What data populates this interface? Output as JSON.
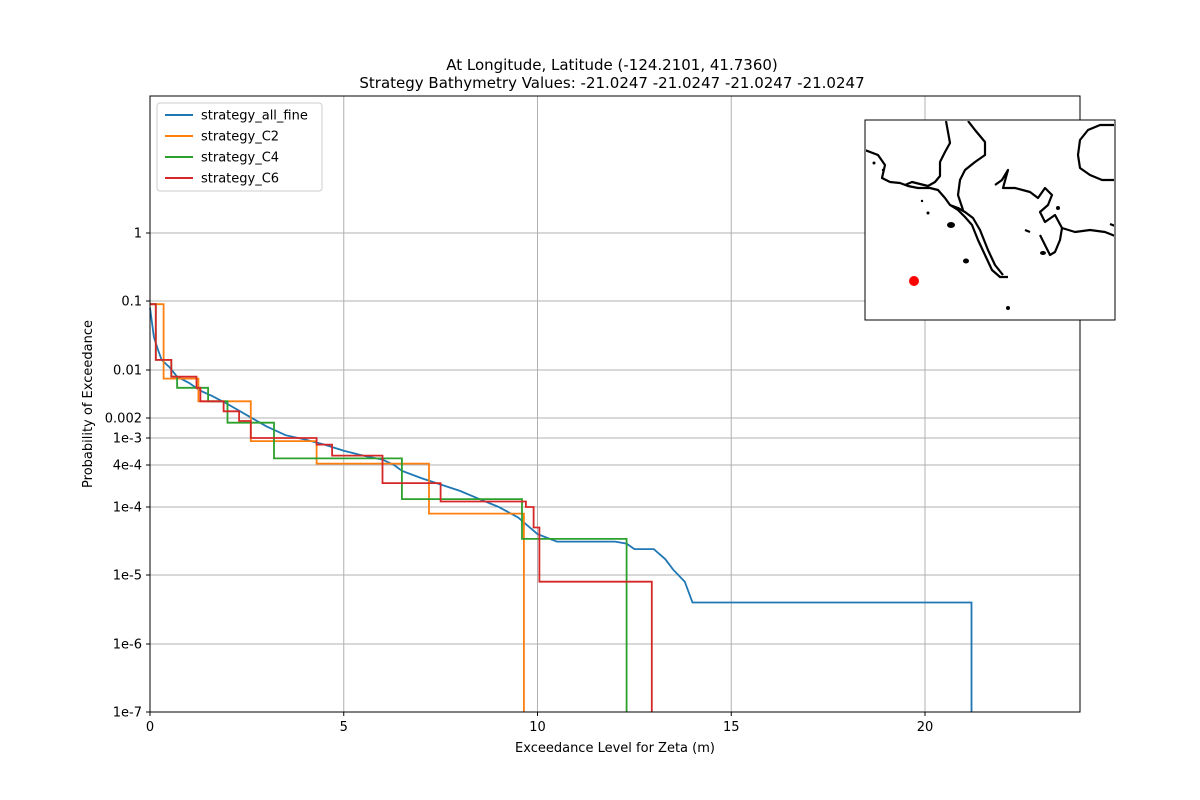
{
  "chart_data": {
    "type": "line",
    "title_line1": "At Longitude, Latitude (-124.2101,  41.7360)",
    "title_line2": "Strategy Bathymetry Values:  -21.0247  -21.0247  -21.0247  -21.0247",
    "xlabel": "Exceedance Level for Zeta (m)",
    "ylabel": "Probability of Exceedance",
    "xlim": [
      0,
      24
    ],
    "ylim": [
      1e-07,
      10
    ],
    "yscale": "log-ish (custom ticks)",
    "grid": true,
    "legend_position": "upper-left",
    "x_ticks": [
      {
        "value": 0,
        "label": "0"
      },
      {
        "value": 5,
        "label": "5"
      },
      {
        "value": 10,
        "label": "10"
      },
      {
        "value": 15,
        "label": "15"
      },
      {
        "value": 20,
        "label": "20"
      }
    ],
    "y_ticks": [
      {
        "value": 1,
        "label": "1"
      },
      {
        "value": 0.1,
        "label": "0.1"
      },
      {
        "value": 0.01,
        "label": "0.01"
      },
      {
        "value": 0.002,
        "label": "0.002"
      },
      {
        "value": 0.001,
        "label": "1e-3"
      },
      {
        "value": 0.0004,
        "label": "4e-4"
      },
      {
        "value": 0.0001,
        "label": "1e-4"
      },
      {
        "value": 1e-05,
        "label": "1e-5"
      },
      {
        "value": 1e-06,
        "label": "1e-6"
      },
      {
        "value": 1e-07,
        "label": "1e-7"
      }
    ],
    "series": [
      {
        "name": "strategy_all_fine",
        "color": "#1f77b4",
        "points": [
          [
            0,
            0.08
          ],
          [
            0.1,
            0.03
          ],
          [
            0.2,
            0.02
          ],
          [
            0.3,
            0.014
          ],
          [
            0.5,
            0.011
          ],
          [
            0.7,
            0.008
          ],
          [
            1.0,
            0.0065
          ],
          [
            1.3,
            0.005
          ],
          [
            1.6,
            0.0042
          ],
          [
            2.0,
            0.0032
          ],
          [
            2.5,
            0.0022
          ],
          [
            3.0,
            0.0015
          ],
          [
            3.5,
            0.0011
          ],
          [
            4.0,
            0.00095
          ],
          [
            4.5,
            0.0008
          ],
          [
            5.0,
            0.00065
          ],
          [
            5.5,
            0.00055
          ],
          [
            6.0,
            0.00048
          ],
          [
            6.3,
            0.0004
          ],
          [
            6.5,
            0.00033
          ],
          [
            7.0,
            0.00026
          ],
          [
            7.5,
            0.00021
          ],
          [
            8.0,
            0.00017
          ],
          [
            8.5,
            0.00013
          ],
          [
            9.0,
            0.0001
          ],
          [
            9.5,
            7e-05
          ],
          [
            10.0,
            4e-05
          ],
          [
            10.5,
            3.1e-05
          ],
          [
            11.0,
            3.1e-05
          ],
          [
            12.0,
            3.1e-05
          ],
          [
            12.3,
            2.9e-05
          ],
          [
            12.5,
            2.4e-05
          ],
          [
            13.0,
            2.4e-05
          ],
          [
            13.3,
            1.7e-05
          ],
          [
            13.5,
            1.2e-05
          ],
          [
            13.8,
            8e-06
          ],
          [
            14.0,
            4e-06
          ],
          [
            18.0,
            4e-06
          ],
          [
            21.2,
            4e-06
          ],
          [
            21.2,
            1e-07
          ]
        ]
      },
      {
        "name": "strategy_C2",
        "color": "#ff7f0e",
        "steps": [
          [
            0,
            0.09
          ],
          [
            0.35,
            0.09
          ],
          [
            0.35,
            0.0075
          ],
          [
            1.25,
            0.0075
          ],
          [
            1.25,
            0.0035
          ],
          [
            2.6,
            0.0035
          ],
          [
            2.6,
            0.0009
          ],
          [
            4.3,
            0.0009
          ],
          [
            4.3,
            0.00042
          ],
          [
            7.2,
            0.00042
          ],
          [
            7.2,
            8e-05
          ],
          [
            9.65,
            8e-05
          ],
          [
            9.65,
            1e-07
          ]
        ]
      },
      {
        "name": "strategy_C4",
        "color": "#2ca02c",
        "steps": [
          [
            0,
            0.09
          ],
          [
            0.15,
            0.09
          ],
          [
            0.15,
            0.014
          ],
          [
            0.55,
            0.014
          ],
          [
            0.55,
            0.008
          ],
          [
            0.7,
            0.008
          ],
          [
            0.7,
            0.0055
          ],
          [
            1.5,
            0.0055
          ],
          [
            1.5,
            0.0035
          ],
          [
            2.0,
            0.0035
          ],
          [
            2.0,
            0.0017
          ],
          [
            3.2,
            0.0017
          ],
          [
            3.2,
            0.0005
          ],
          [
            6.5,
            0.0005
          ],
          [
            6.5,
            0.00013
          ],
          [
            9.6,
            0.00013
          ],
          [
            9.6,
            3.4e-05
          ],
          [
            12.3,
            3.4e-05
          ],
          [
            12.3,
            1e-07
          ]
        ]
      },
      {
        "name": "strategy_C6",
        "color": "#d62728",
        "steps": [
          [
            0,
            0.09
          ],
          [
            0.15,
            0.09
          ],
          [
            0.15,
            0.014
          ],
          [
            0.55,
            0.014
          ],
          [
            0.55,
            0.008
          ],
          [
            1.2,
            0.008
          ],
          [
            1.2,
            0.0055
          ],
          [
            1.3,
            0.0055
          ],
          [
            1.3,
            0.0035
          ],
          [
            1.9,
            0.0035
          ],
          [
            1.9,
            0.0025
          ],
          [
            2.3,
            0.0025
          ],
          [
            2.3,
            0.0018
          ],
          [
            2.6,
            0.0018
          ],
          [
            2.6,
            0.001
          ],
          [
            4.3,
            0.001
          ],
          [
            4.3,
            0.0008
          ],
          [
            4.7,
            0.0008
          ],
          [
            4.7,
            0.00055
          ],
          [
            6.0,
            0.00055
          ],
          [
            6.0,
            0.00022
          ],
          [
            7.5,
            0.00022
          ],
          [
            7.5,
            0.00012
          ],
          [
            9.7,
            0.00012
          ],
          [
            9.7,
            0.0001
          ],
          [
            9.9,
            0.0001
          ],
          [
            9.9,
            5e-05
          ],
          [
            10.05,
            5e-05
          ],
          [
            10.05,
            8e-06
          ],
          [
            12.95,
            8e-06
          ],
          [
            12.95,
            1e-07
          ]
        ]
      }
    ],
    "inset_map": {
      "marker_color": "#ff0000"
    }
  }
}
